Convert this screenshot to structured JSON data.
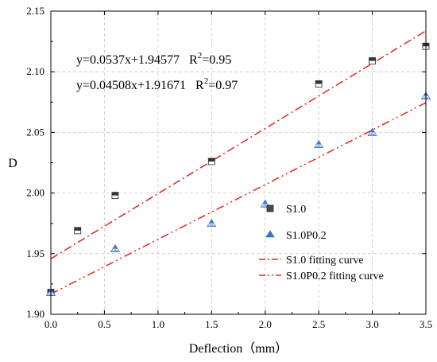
{
  "chart_data": {
    "type": "scatter",
    "xlabel": "Deflection（mm）",
    "ylabel": "D",
    "xlim": [
      0.0,
      3.5
    ],
    "ylim": [
      1.9,
      2.15
    ],
    "xticks": [
      "0.0",
      "0.5",
      "1.0",
      "1.5",
      "2.0",
      "2.5",
      "3.0",
      "3.5"
    ],
    "yticks": [
      "1.90",
      "1.95",
      "2.00",
      "2.05",
      "2.10",
      "2.15"
    ],
    "grid": "dashed",
    "legend_position": "bottom-right",
    "series": [
      {
        "name": "S1.0",
        "marker": "square",
        "color": "#333333",
        "x": [
          0.0,
          0.25,
          0.6,
          1.5,
          2.5,
          3.0,
          3.5
        ],
        "y": [
          1.918,
          1.969,
          1.998,
          2.026,
          2.09,
          2.109,
          2.121
        ]
      },
      {
        "name": "S1.0P0.2",
        "marker": "triangle",
        "color": "#3a78d8",
        "x": [
          0.0,
          0.6,
          1.5,
          2.0,
          2.5,
          3.0,
          3.5
        ],
        "y": [
          1.918,
          1.954,
          1.975,
          1.991,
          2.04,
          2.05,
          2.08
        ]
      }
    ],
    "fits": [
      {
        "name": "S1.0 fitting curve",
        "slope": 0.0537,
        "intercept": 1.94577,
        "color": "#e8231c",
        "dash": "dash-dot"
      },
      {
        "name": "S1.0P0.2 fitting curve",
        "slope": 0.04508,
        "intercept": 1.91671,
        "color": "#e8231c",
        "dash": "dash-dot-dot"
      }
    ],
    "annotations": [
      {
        "equation": "y=0.0537x+1.94577",
        "r2_prefix": "R",
        "r2_exp": "2",
        "r2_value": "=0.95"
      },
      {
        "equation": "y=0.04508x+1.91671",
        "r2_prefix": "R",
        "r2_exp": "2",
        "r2_value": "=0.97"
      }
    ]
  }
}
